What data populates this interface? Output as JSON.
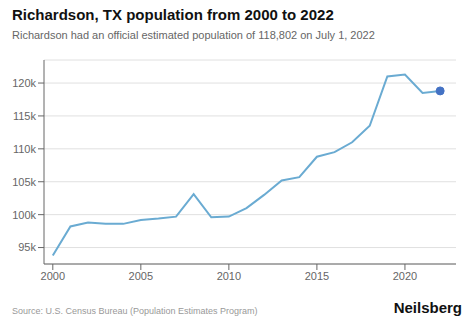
{
  "chart_data": {
    "type": "line",
    "title": "Richardson, TX population from 2000 to 2022",
    "subtitle": "Richardson had an official estimated population of 118,802 on July 1, 2022",
    "annotations": [
      "Source: U.S. Census Bureau (Population Estimates Program)",
      "Neilsberg"
    ],
    "x": [
      2000,
      2001,
      2002,
      2003,
      2004,
      2005,
      2006,
      2007,
      2008,
      2009,
      2010,
      2011,
      2012,
      2013,
      2014,
      2015,
      2016,
      2017,
      2018,
      2019,
      2020,
      2021,
      2022
    ],
    "series": [
      {
        "type": "line",
        "color": "#6aabd2",
        "values": [
          93800,
          98200,
          98800,
          98600,
          98600,
          99200,
          99400,
          99700,
          103100,
          99600,
          99700,
          101000,
          103000,
          105200,
          105700,
          108800,
          109500,
          111000,
          113500,
          121000,
          121300,
          118500,
          118802
        ]
      },
      {
        "type": "scatter",
        "color": "#4472c4",
        "values": [
          null,
          null,
          null,
          null,
          null,
          null,
          null,
          null,
          null,
          null,
          null,
          null,
          null,
          null,
          null,
          null,
          null,
          null,
          null,
          null,
          null,
          null,
          118802
        ]
      }
    ],
    "xlim": [
      1999.5,
      2022.9
    ],
    "xticks": [
      2000,
      2005,
      2010,
      2015,
      2020
    ],
    "ylim": [
      92500,
      123500
    ],
    "yticks": [
      {
        "value": 95000,
        "label": "95k"
      },
      {
        "value": 100000,
        "label": "100k"
      },
      {
        "value": 105000,
        "label": "105k"
      },
      {
        "value": 110000,
        "label": "110k"
      },
      {
        "value": 115000,
        "label": "115k"
      },
      {
        "value": 120000,
        "label": "120k"
      }
    ],
    "grid": "y"
  }
}
